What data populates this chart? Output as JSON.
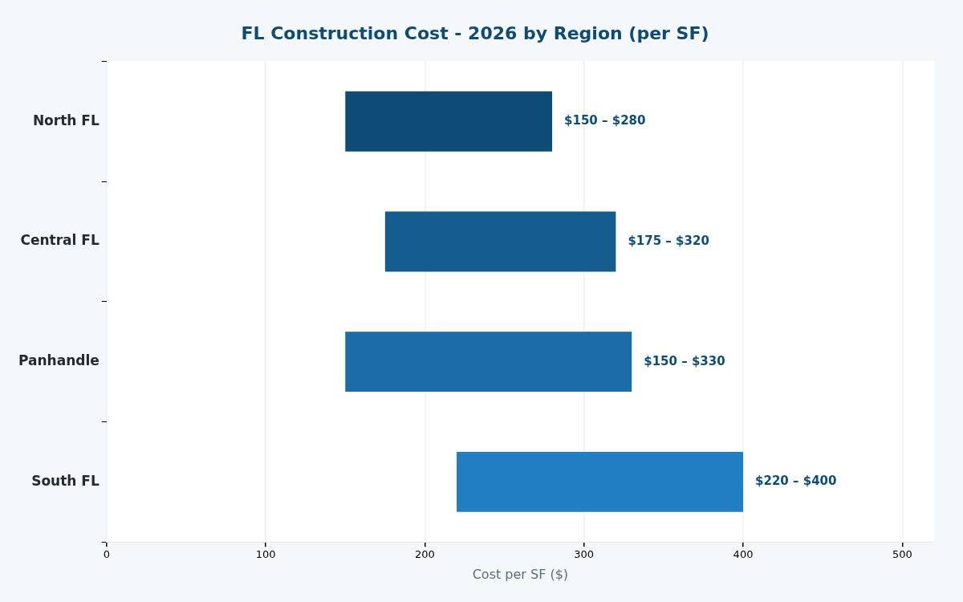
{
  "chart_data": {
    "type": "bar",
    "orientation": "horizontal",
    "title": "FL Construction Cost - 2026 by Region (per SF)",
    "xlabel": "Cost per SF ($)",
    "categories": [
      "North FL",
      "Central FL",
      "Panhandle",
      "South FL"
    ],
    "base": [
      150,
      175,
      150,
      220
    ],
    "values": [
      130,
      145,
      180,
      180
    ],
    "colors": [
      "#0f4c75",
      "#155d8f",
      "#1b6ca8",
      "#1f7fc2"
    ],
    "annotations": [
      {
        "text": "$150 – $280",
        "x": 280,
        "y": "North FL"
      },
      {
        "text": "$175 – $320",
        "x": 320,
        "y": "Central FL"
      },
      {
        "text": "$150 – $330",
        "x": 330,
        "y": "Panhandle"
      },
      {
        "text": "$220 – $400",
        "x": 400,
        "y": "South FL"
      }
    ],
    "xlim": [
      0,
      520
    ],
    "xticks": [
      0,
      100,
      200,
      300,
      400,
      500
    ],
    "grid": "x"
  }
}
